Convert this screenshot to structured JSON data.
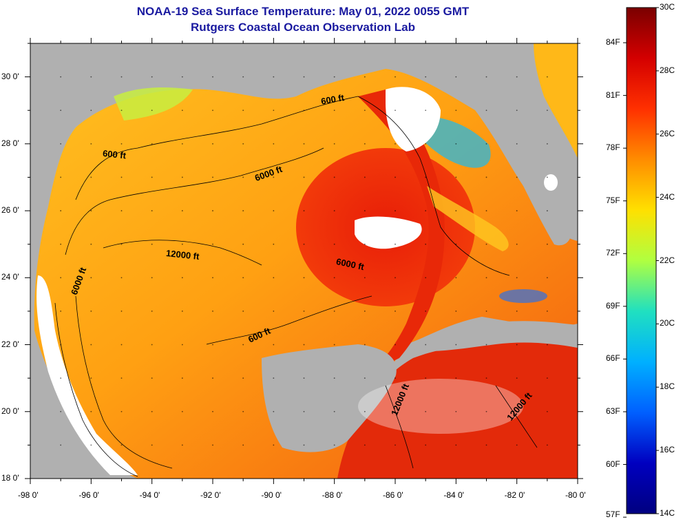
{
  "title": {
    "line1": "NOAA-19 Sea Surface Temperature:  May 01, 2022 0055 GMT",
    "line2": "Rutgers Coastal Ocean Observation Lab"
  },
  "map": {
    "lat_labels": [
      "30 0'",
      "28 0'",
      "26 0'",
      "24 0'",
      "22 0'",
      "20 0'",
      "18 0'"
    ],
    "lon_labels": [
      "-98 0'",
      "-96 0'",
      "-94 0'",
      "-92 0'",
      "-90 0'",
      "-88 0'",
      "-86 0'",
      "-84 0'",
      "-82 0'",
      "-80 0'"
    ],
    "lat_range": [
      18,
      31
    ],
    "lon_range": [
      -98,
      -80
    ],
    "contours": [
      "600 ft",
      "6000 ft",
      "12000 ft",
      "600 ft",
      "6000 ft",
      "6000 ft",
      "600 ft",
      "12000 ft",
      "12000 ft"
    ],
    "land_color": "#b0b0b0",
    "cloud_color": "#ffffff"
  },
  "colorbar": {
    "celsius": [
      "30C",
      "28C",
      "26C",
      "24C",
      "22C",
      "20C",
      "18C",
      "16C",
      "14C"
    ],
    "fahrenheit": [
      "84F",
      "81F",
      "78F",
      "75F",
      "72F",
      "69F",
      "66F",
      "63F",
      "60F",
      "57F"
    ],
    "range_c": [
      14,
      30
    ],
    "colors": [
      "#7a0000",
      "#d40000",
      "#ff3000",
      "#ff8c00",
      "#ffe000",
      "#b0ff40",
      "#20e0c0",
      "#00b0ff",
      "#0060ff",
      "#0000c0",
      "#000080"
    ]
  }
}
